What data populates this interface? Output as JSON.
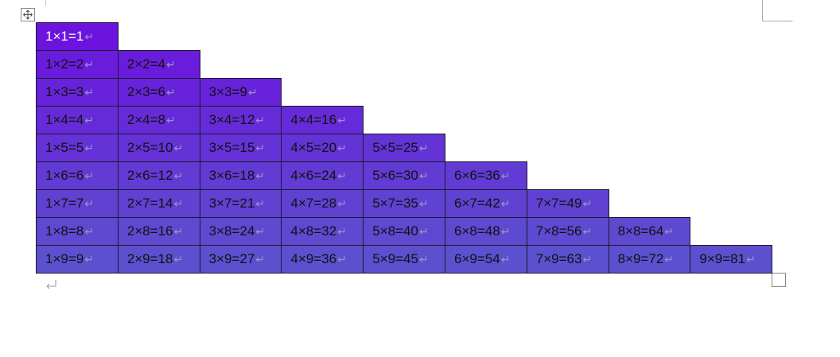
{
  "table": {
    "rows": [
      [
        "1×1=1"
      ],
      [
        "1×2=2",
        "2×2=4"
      ],
      [
        "1×3=3",
        "2×3=6",
        "3×3=9"
      ],
      [
        "1×4=4",
        "2×4=8",
        "3×4=12",
        "4×4=16"
      ],
      [
        "1×5=5",
        "2×5=10",
        "3×5=15",
        "4×5=20",
        "5×5=25"
      ],
      [
        "1×6=6",
        "2×6=12",
        "3×6=18",
        "4×6=24",
        "5×6=30",
        "6×6=36"
      ],
      [
        "1×7=7",
        "2×7=14",
        "3×7=21",
        "4×7=28",
        "5×7=35",
        "6×7=42",
        "7×7=49"
      ],
      [
        "1×8=8",
        "2×8=16",
        "3×8=24",
        "4×8=32",
        "5×8=40",
        "6×8=48",
        "7×8=56",
        "8×8=64"
      ],
      [
        "1×9=9",
        "2×9=18",
        "3×9=27",
        "4×9=36",
        "5×9=45",
        "6×9=54",
        "7×9=63",
        "8×9=72",
        "9×9=81"
      ]
    ]
  }
}
